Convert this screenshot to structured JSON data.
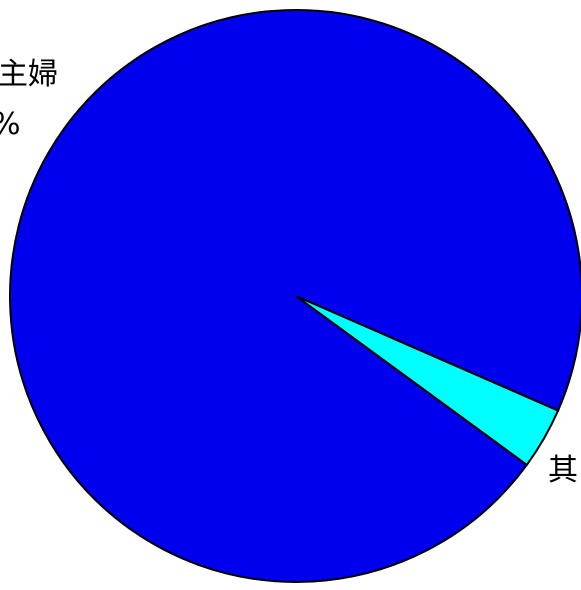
{
  "chart_data": {
    "type": "pie",
    "slices": [
      {
        "label": "主婦",
        "value_label": "%",
        "value": 96.5,
        "color": "#0000ee"
      },
      {
        "label": "其",
        "value": 3.5,
        "color": "#00ffff"
      }
    ]
  }
}
